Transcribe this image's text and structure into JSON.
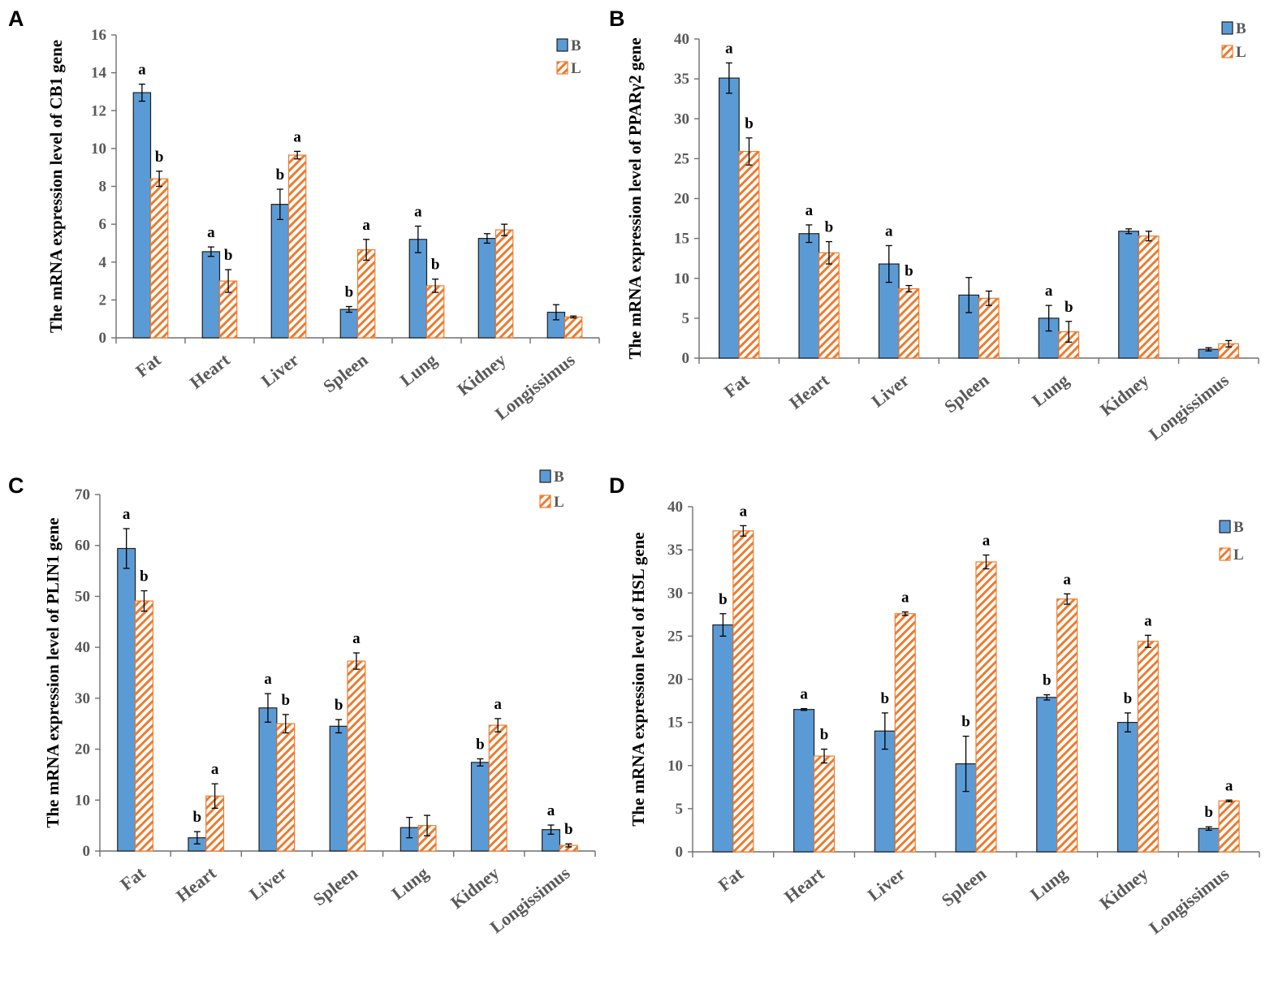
{
  "colors": {
    "B": "#5b9bd5",
    "L_hatch": "#ec7c30",
    "axis": "#6f6f6f",
    "tick_text": "#595959"
  },
  "chart_data": [
    {
      "panel": "A",
      "type": "bar",
      "ylabel": "The mRNA expression level of CB1  gene",
      "ylim": [
        0,
        16
      ],
      "yticks": [
        0,
        2,
        4,
        6,
        8,
        10,
        12,
        14,
        16
      ],
      "categories": [
        "Fat",
        "Heart",
        "Liver",
        "Spleen",
        "Lung",
        "Kidney",
        "Longissimus"
      ],
      "legend": [
        "B",
        "L"
      ],
      "legend_position": "top-right",
      "series": [
        {
          "name": "B",
          "values": [
            12.95,
            4.55,
            7.05,
            1.5,
            5.2,
            5.25,
            1.35
          ],
          "errors": [
            0.45,
            0.25,
            0.8,
            0.15,
            0.7,
            0.25,
            0.4
          ],
          "labels": [
            "a",
            "a",
            "b",
            "b",
            "a",
            "",
            ""
          ]
        },
        {
          "name": "L",
          "values": [
            8.4,
            3.0,
            9.65,
            4.65,
            2.75,
            5.7,
            1.1
          ],
          "errors": [
            0.4,
            0.6,
            0.2,
            0.55,
            0.35,
            0.3,
            0.05
          ],
          "labels": [
            "b",
            "b",
            "a",
            "a",
            "b",
            "",
            ""
          ]
        }
      ]
    },
    {
      "panel": "B",
      "type": "bar",
      "ylabel": "The mRNA expression level of PPARγ2  gene",
      "ylim": [
        0,
        40
      ],
      "yticks": [
        0,
        5,
        10,
        15,
        20,
        25,
        30,
        35,
        40
      ],
      "categories": [
        "Fat",
        "Heart",
        "Liver",
        "Spleen",
        "Lung",
        "Kidney",
        "Longissimus"
      ],
      "legend": [
        "B",
        "L"
      ],
      "legend_position": "top-right",
      "series": [
        {
          "name": "B",
          "values": [
            35.1,
            15.6,
            11.8,
            7.9,
            5.0,
            15.9,
            1.1
          ],
          "errors": [
            1.9,
            1.1,
            2.3,
            2.2,
            1.6,
            0.3,
            0.2
          ],
          "labels": [
            "a",
            "a",
            "a",
            "",
            "a",
            "",
            ""
          ]
        },
        {
          "name": "L",
          "values": [
            25.9,
            13.2,
            8.7,
            7.5,
            3.3,
            15.3,
            1.8
          ],
          "errors": [
            1.7,
            1.4,
            0.4,
            0.9,
            1.3,
            0.6,
            0.4
          ],
          "labels": [
            "b",
            "b",
            "b",
            "",
            "b",
            "",
            ""
          ]
        }
      ]
    },
    {
      "panel": "C",
      "type": "bar",
      "ylabel": "The mRNA expression level of PLIN1  gene",
      "ylim": [
        0,
        70
      ],
      "yticks": [
        0,
        10,
        20,
        30,
        40,
        50,
        60,
        70
      ],
      "categories": [
        "Fat",
        "Heart",
        "Liver",
        "Spleen",
        "Lung",
        "Kidney",
        "Longissimus"
      ],
      "legend": [
        "B",
        "L"
      ],
      "legend_position": "top-right",
      "series": [
        {
          "name": "B",
          "values": [
            59.4,
            2.6,
            28.1,
            24.5,
            4.6,
            17.4,
            4.2
          ],
          "errors": [
            3.9,
            1.2,
            2.8,
            1.3,
            2.0,
            0.7,
            0.9
          ],
          "labels": [
            "a",
            "b",
            "a",
            "b",
            "",
            "b",
            "a"
          ]
        },
        {
          "name": "L",
          "values": [
            49.1,
            10.8,
            25.0,
            37.3,
            5.0,
            24.7,
            1.1
          ],
          "errors": [
            2.0,
            2.4,
            1.8,
            1.6,
            2.0,
            1.3,
            0.3
          ],
          "labels": [
            "b",
            "a",
            "b",
            "a",
            "",
            "a",
            "b"
          ]
        }
      ]
    },
    {
      "panel": "D",
      "type": "bar",
      "ylabel": "The mRNA expression level of HSL   gene",
      "ylim": [
        0,
        40
      ],
      "yticks": [
        0,
        5,
        10,
        15,
        20,
        25,
        30,
        35,
        40
      ],
      "categories": [
        "Fat",
        "Heart",
        "Liver",
        "Spleen",
        "Lung",
        "Kidney",
        "Longissimus"
      ],
      "legend": [
        "B",
        "L"
      ],
      "legend_position": "top-right",
      "series": [
        {
          "name": "B",
          "values": [
            26.3,
            16.5,
            14.0,
            10.2,
            17.9,
            15.0,
            2.7
          ],
          "errors": [
            1.3,
            0.1,
            2.1,
            3.2,
            0.3,
            1.1,
            0.2
          ],
          "labels": [
            "b",
            "a",
            "b",
            "b",
            "b",
            "b",
            "b"
          ]
        },
        {
          "name": "L",
          "values": [
            37.2,
            11.1,
            27.6,
            33.6,
            29.3,
            24.4,
            5.9
          ],
          "errors": [
            0.6,
            0.8,
            0.2,
            0.8,
            0.6,
            0.7,
            0.1
          ],
          "labels": [
            "a",
            "b",
            "a",
            "a",
            "a",
            "a",
            "a"
          ]
        }
      ]
    }
  ]
}
